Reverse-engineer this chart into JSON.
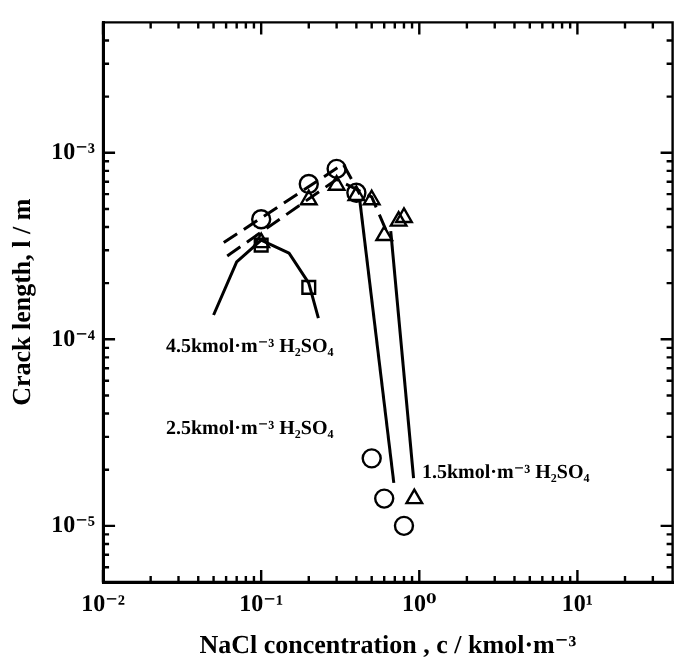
{
  "chart_data": {
    "type": "scatter",
    "xlabel": "NaCl concentration , c / kmol·m⁻³",
    "ylabel": "Crack length, l / m",
    "log": "xy",
    "grid": false,
    "legend": false,
    "xlim": [
      0.01,
      40
    ],
    "ylim": [
      5e-06,
      0.005
    ],
    "xticks": [
      {
        "value": 0.01,
        "label": "10⁻²"
      },
      {
        "value": 0.02,
        "label": null
      },
      {
        "value": 0.03,
        "label": null
      },
      {
        "value": 0.04,
        "label": null
      },
      {
        "value": 0.05,
        "label": null
      },
      {
        "value": 0.06,
        "label": null
      },
      {
        "value": 0.07,
        "label": null
      },
      {
        "value": 0.08,
        "label": null
      },
      {
        "value": 0.09,
        "label": null
      },
      {
        "value": 0.1,
        "label": "10⁻¹"
      },
      {
        "value": 0.2,
        "label": null
      },
      {
        "value": 0.3,
        "label": null
      },
      {
        "value": 0.4,
        "label": null
      },
      {
        "value": 0.5,
        "label": null
      },
      {
        "value": 0.6,
        "label": null
      },
      {
        "value": 0.7,
        "label": null
      },
      {
        "value": 0.8,
        "label": null
      },
      {
        "value": 0.9,
        "label": null
      },
      {
        "value": 1,
        "label": "10⁰"
      },
      {
        "value": 2,
        "label": null
      },
      {
        "value": 3,
        "label": null
      },
      {
        "value": 4,
        "label": null
      },
      {
        "value": 5,
        "label": null
      },
      {
        "value": 6,
        "label": null
      },
      {
        "value": 7,
        "label": null
      },
      {
        "value": 8,
        "label": null
      },
      {
        "value": 9,
        "label": null
      },
      {
        "value": 10,
        "label": "10¹"
      },
      {
        "value": 20,
        "label": null
      },
      {
        "value": 30,
        "label": null
      }
    ],
    "yticks": [
      {
        "value": 6e-06,
        "label": null
      },
      {
        "value": 7e-06,
        "label": null
      },
      {
        "value": 8e-06,
        "label": null
      },
      {
        "value": 9e-06,
        "label": null
      },
      {
        "value": 1e-05,
        "label": "10⁻⁵"
      },
      {
        "value": 2e-05,
        "label": null
      },
      {
        "value": 3e-05,
        "label": null
      },
      {
        "value": 4e-05,
        "label": null
      },
      {
        "value": 5e-05,
        "label": null
      },
      {
        "value": 6e-05,
        "label": null
      },
      {
        "value": 7e-05,
        "label": null
      },
      {
        "value": 8e-05,
        "label": null
      },
      {
        "value": 9e-05,
        "label": null
      },
      {
        "value": 0.0001,
        "label": "10⁻⁴"
      },
      {
        "value": 0.0002,
        "label": null
      },
      {
        "value": 0.0003,
        "label": null
      },
      {
        "value": 0.0004,
        "label": null
      },
      {
        "value": 0.0005,
        "label": null
      },
      {
        "value": 0.0006,
        "label": null
      },
      {
        "value": 0.0007,
        "label": null
      },
      {
        "value": 0.0008,
        "label": null
      },
      {
        "value": 0.0009,
        "label": null
      },
      {
        "value": 0.001,
        "label": "10⁻³"
      },
      {
        "value": 0.002,
        "label": null
      },
      {
        "value": 0.003,
        "label": null
      },
      {
        "value": 0.004,
        "label": null
      }
    ],
    "series": [
      {
        "type": "scatter",
        "marker": "circle",
        "color": "#000000",
        "x": [
          0.1,
          0.2,
          0.3,
          0.4,
          0.5,
          0.6,
          0.8
        ],
        "values": [
          0.00044,
          0.00068,
          0.00082,
          0.00061,
          2.3e-05,
          1.4e-05,
          1e-05
        ]
      },
      {
        "type": "scatter",
        "marker": "triangle",
        "color": "#000000",
        "x": [
          0.1,
          0.2,
          0.3,
          0.4,
          0.5,
          0.6,
          0.74,
          0.8,
          0.93
        ],
        "values": [
          0.00033,
          0.00056,
          0.00067,
          0.00059,
          0.00056,
          0.00036,
          0.00043,
          0.00045,
          1.4e-05
        ]
      },
      {
        "type": "scatter",
        "marker": "square",
        "color": "#000000",
        "x": [
          0.1,
          0.2
        ],
        "values": [
          0.00032,
          0.00019
        ]
      },
      {
        "type": "line",
        "marker": "none",
        "line_style": "dashed",
        "color": "#000000",
        "x": [
          0.058,
          0.33,
          0.42
        ],
        "values": [
          0.00033,
          0.00087,
          0.0006
        ]
      },
      {
        "type": "line",
        "marker": "none",
        "line_style": "solid",
        "color": "#000000",
        "x": [
          0.42,
          0.69
        ],
        "values": [
          0.00056,
          1.7e-05
        ]
      },
      {
        "type": "line",
        "marker": "none",
        "line_style": "dashed",
        "color": "#000000",
        "x": [
          0.061,
          0.3,
          0.5,
          0.62
        ],
        "values": [
          0.00028,
          0.00072,
          0.00058,
          0.00038
        ]
      },
      {
        "type": "line",
        "marker": "none",
        "line_style": "solid",
        "color": "#000000",
        "x": [
          0.66,
          0.92
        ],
        "values": [
          0.00038,
          1.8e-05
        ]
      },
      {
        "type": "line",
        "marker": "none",
        "line_style": "solid",
        "color": "#000000",
        "x": [
          0.05,
          0.07,
          0.1,
          0.15,
          0.2,
          0.23
        ],
        "values": [
          0.000135,
          0.00026,
          0.00034,
          0.00029,
          0.0002,
          0.00013
        ]
      }
    ],
    "annotations": [
      "4.5kmol·m⁻³ H₂SO₄",
      "2.5kmol·m⁻³ H₂SO₄",
      "1.5kmol·m⁻³ H₂SO₄"
    ]
  }
}
